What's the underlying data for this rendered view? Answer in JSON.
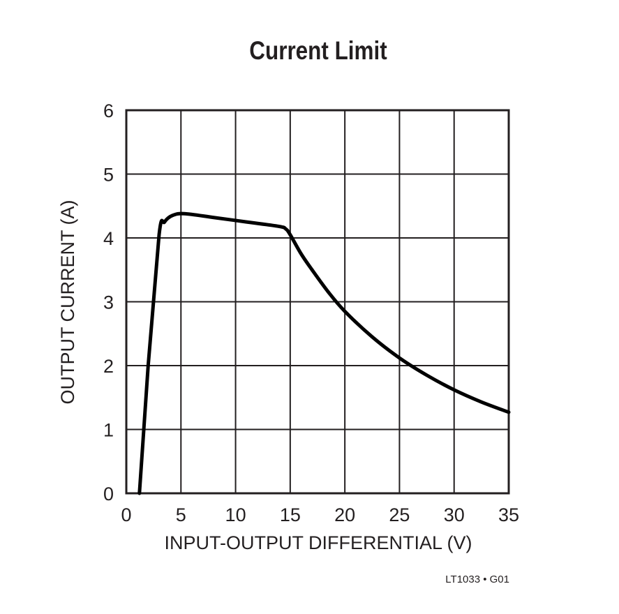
{
  "chart_data": {
    "type": "line",
    "title": "Current Limit",
    "xlabel": "INPUT-OUTPUT DIFFERENTIAL (V)",
    "ylabel": "OUTPUT CURRENT (A)",
    "xlim": [
      0,
      35
    ],
    "ylim": [
      0,
      6
    ],
    "xticks": [
      0,
      5,
      10,
      15,
      20,
      25,
      30,
      35
    ],
    "yticks": [
      0,
      1,
      2,
      3,
      4,
      5,
      6
    ],
    "grid": true,
    "legend": null,
    "series": [
      {
        "name": "Output Current",
        "x": [
          1.2,
          2.0,
          3.0,
          3.5,
          4.2,
          5.3,
          8.0,
          11.0,
          14.0,
          14.6,
          15.0,
          16.0,
          17.0,
          18.5,
          20.0,
          22.5,
          25.0,
          27.5,
          30.0,
          32.5,
          35.0
        ],
        "y": [
          0.0,
          2.0,
          4.05,
          4.25,
          4.35,
          4.38,
          4.32,
          4.25,
          4.18,
          4.14,
          4.05,
          3.75,
          3.5,
          3.15,
          2.85,
          2.45,
          2.12,
          1.85,
          1.62,
          1.43,
          1.27
        ]
      }
    ],
    "annotations": [
      "LT1033 • G01"
    ]
  },
  "figure": {
    "title": "Current Limit",
    "xlabel": "INPUT-OUTPUT DIFFERENTIAL (V)",
    "ylabel": "OUTPUT CURRENT (A)",
    "footnote": "LT1033 • G01",
    "line_color": "#000000",
    "grid_color": "#231f20"
  }
}
